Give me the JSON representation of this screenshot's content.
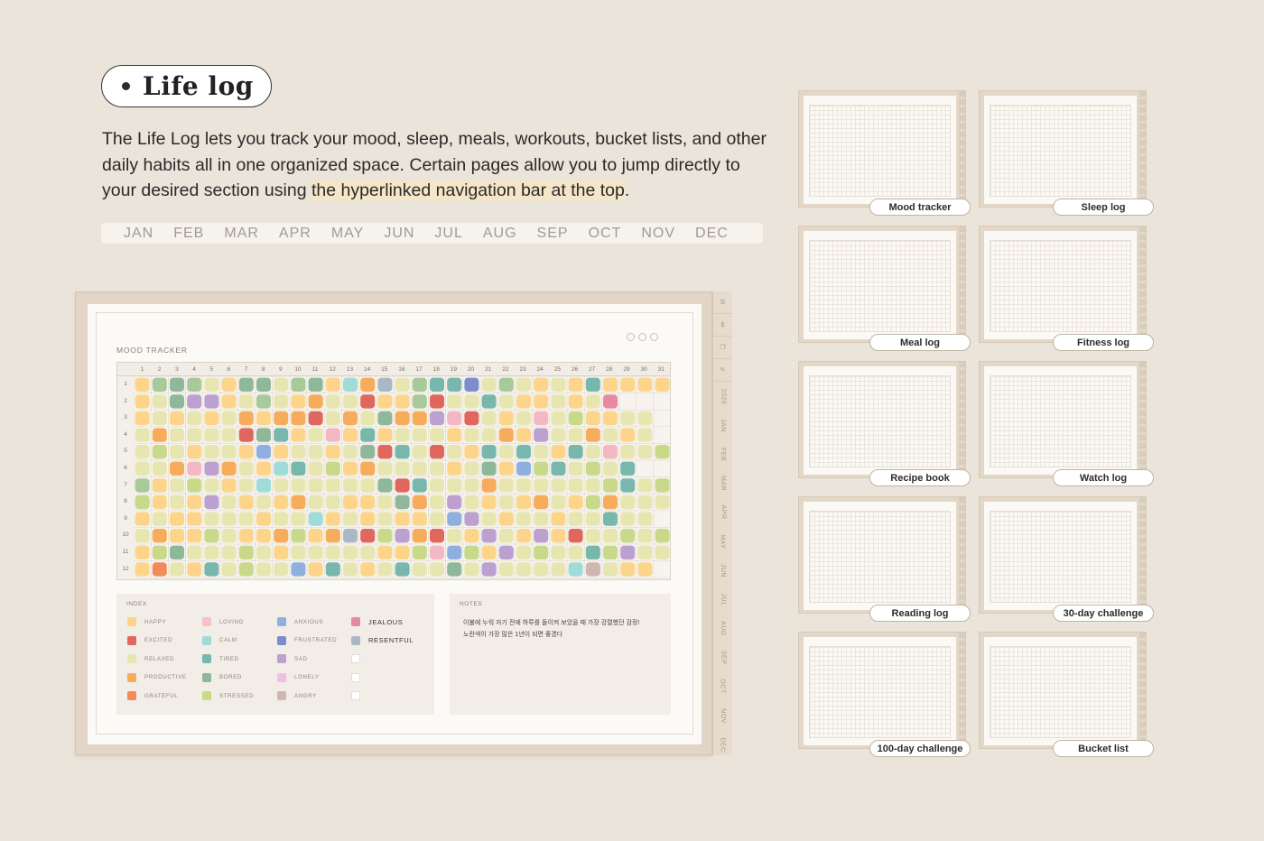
{
  "title": "Life log",
  "intro": {
    "part1": "The Life Log lets you track your mood, sleep, meals, workouts, bucket lists, and other daily habits all in one organized space. Certain pages allow you to jump directly to your desired section using ",
    "highlight": "the hyperlinked navigation bar at the top",
    "part2": "."
  },
  "months": [
    "JAN",
    "FEB",
    "MAR",
    "APR",
    "MAY",
    "JUN",
    "JUL",
    "AUG",
    "SEP",
    "OCT",
    "NOV",
    "DEC"
  ],
  "side_tabs": [
    "2026",
    "JAN",
    "FEB",
    "MAR",
    "APR",
    "MAY",
    "JUN",
    "JUL",
    "AUG",
    "SEP",
    "OCT",
    "NOV",
    "DEC"
  ],
  "mood_tracker": {
    "title": "MOOD TRACKER",
    "days": [
      "1",
      "2",
      "3",
      "4",
      "5",
      "6",
      "7",
      "8",
      "9",
      "10",
      "11",
      "12",
      "13",
      "14",
      "15",
      "16",
      "17",
      "18",
      "19",
      "20",
      "21",
      "22",
      "23",
      "24",
      "25",
      "26",
      "27",
      "28",
      "29",
      "30",
      "31"
    ],
    "months": [
      "1",
      "2",
      "3",
      "4",
      "5",
      "6",
      "7",
      "8",
      "9",
      "10",
      "11",
      "12"
    ],
    "colors": {
      "Y": "#fdd58a",
      "R": "#a8c99a",
      "G": "#8fb89a",
      "L": "#e8e6b0",
      "T": "#78b8ac",
      "O": "#f6ac5a",
      "P": "#bba0d0",
      "B": "#8fb0df",
      "D": "#7f8ccc",
      "K": "#f4b8c4",
      "C": "#9fdcd8",
      "E": "#e0675e",
      "F": "#f28a5a",
      "S": "#c9d98a",
      "A": "#cfb6b0",
      "H": "#a9b8c4",
      "J": "#e78aa0"
    },
    "grid": [
      "YRGRLYGGLRGYCOHLRTTDLRLYLYTYYYY",
      "YLGPPYLRLYOLLEYYRELLTLYYLYLJ...",
      "YLYLYLOYOOELOLGOOPKELYLKLSYYLL.",
      "LOLLLLEGTYLKYTYLLLYLLOYPLLOLYL.",
      "LSLYLLYBYLLYLGETLELYTLTLYTLKLLS",
      "LLOKPOLYCTLSYOLLLLYLGYBSTLSLT..",
      "RYLSLYLCLLLLLLGETLLLOLLLLLLSTLS",
      "SYLYPLYLYOLLYYLGOLPLYLYOLYSOLLL",
      "YLYYLLLYLLCYLYLYYLBPLYLLYLLTLL.",
      "LOYYSLYYOSYOHESPOELYPLYPYELLSLS",
      "YSGLLLSLYLLLLLYYSKBSYPLSLLTSPLL",
      "YFLYTLSLLBYTLYLTLLGLPLLLLCALYY."
    ]
  },
  "index": {
    "title": "INDEX",
    "items": [
      {
        "label": "HAPPY",
        "color": "#fdd58a"
      },
      {
        "label": "EXCITED",
        "color": "#e0675e"
      },
      {
        "label": "RELAXED",
        "color": "#e8e6b0"
      },
      {
        "label": "PRODUCTIVE",
        "color": "#f6ac5a"
      },
      {
        "label": "GRATEFUL",
        "color": "#f28a5a"
      },
      {
        "label": "LOVING",
        "color": "#f4c2c8"
      },
      {
        "label": "CALM",
        "color": "#9fdcd8"
      },
      {
        "label": "TIRED",
        "color": "#78b8ac"
      },
      {
        "label": "BORED",
        "color": "#8fb89a"
      },
      {
        "label": "STRESSED",
        "color": "#c9d98a"
      },
      {
        "label": "ANXIOUS",
        "color": "#8fb0df"
      },
      {
        "label": "FRUSTRATED",
        "color": "#7f8ccc"
      },
      {
        "label": "SAD",
        "color": "#bba0d0"
      },
      {
        "label": "LONELY",
        "color": "#f0c0e0"
      },
      {
        "label": "ANGRY",
        "color": "#cfb6b0"
      },
      {
        "label": "JEALOUS",
        "color": "#e78aa0"
      },
      {
        "label": "RESENTFUL",
        "color": "#a9b8c4"
      }
    ]
  },
  "notes": {
    "title": "NOTES",
    "line1": "이불에 누워 자기 전에 하루를 돌이켜 보았을 때 가장 강렬했던 감정!",
    "line2": "노란색이 가장 많은 1년이 되면 좋겠다"
  },
  "cards": [
    {
      "label": "Mood tracker"
    },
    {
      "label": "Sleep log"
    },
    {
      "label": "Meal log"
    },
    {
      "label": "Fitness log"
    },
    {
      "label": "Recipe book"
    },
    {
      "label": "Watch log"
    },
    {
      "label": "Reading log"
    },
    {
      "label": "30-day challenge"
    },
    {
      "label": "100-day challenge"
    },
    {
      "label": "Bucket list"
    }
  ]
}
